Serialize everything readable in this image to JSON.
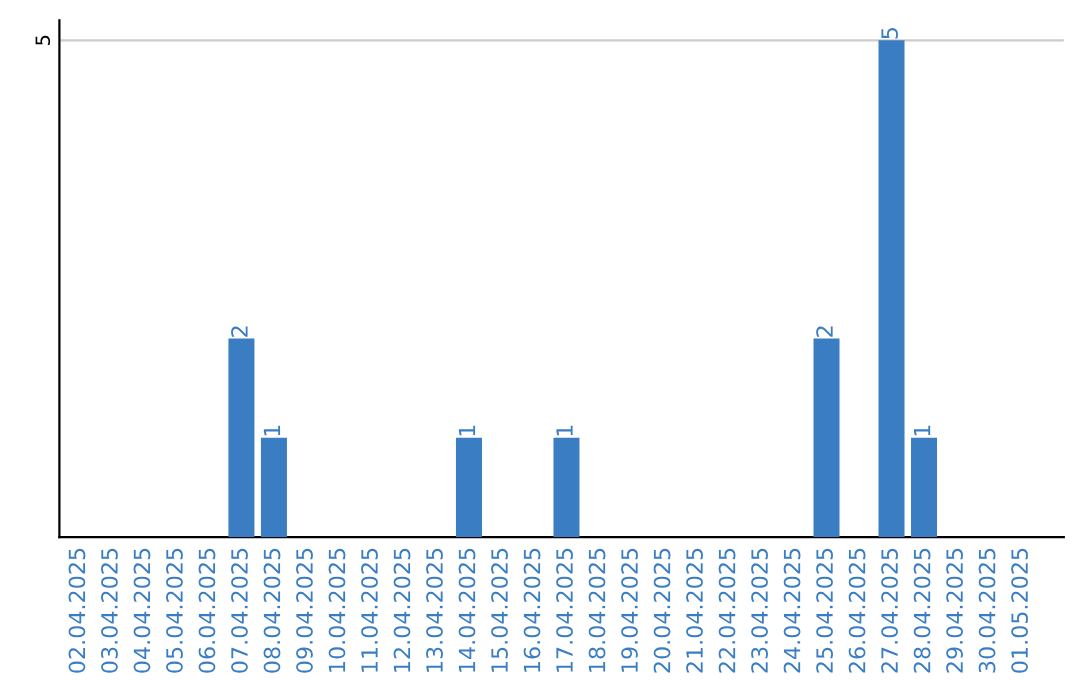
{
  "chart_data": {
    "type": "bar",
    "categories": [
      "02.04.2025",
      "03.04.2025",
      "04.04.2025",
      "05.04.2025",
      "06.04.2025",
      "07.04.2025",
      "08.04.2025",
      "09.04.2025",
      "10.04.2025",
      "11.04.2025",
      "12.04.2025",
      "13.04.2025",
      "14.04.2025",
      "15.04.2025",
      "16.04.2025",
      "17.04.2025",
      "18.04.2025",
      "19.04.2025",
      "20.04.2025",
      "21.04.2025",
      "22.04.2025",
      "23.04.2025",
      "24.04.2025",
      "25.04.2025",
      "26.04.2025",
      "27.04.2025",
      "28.04.2025",
      "29.04.2025",
      "30.04.2025",
      "01.05.2025"
    ],
    "values": [
      0,
      0,
      0,
      0,
      0,
      2,
      1,
      0,
      0,
      0,
      0,
      0,
      1,
      0,
      0,
      1,
      0,
      0,
      0,
      0,
      0,
      0,
      0,
      2,
      0,
      5,
      1,
      0,
      0,
      0
    ],
    "value_labels": [
      null,
      null,
      null,
      null,
      null,
      "2",
      "1",
      null,
      null,
      null,
      null,
      null,
      "1",
      null,
      null,
      "1",
      null,
      null,
      null,
      null,
      null,
      null,
      null,
      "2",
      null,
      "5",
      "1",
      null,
      null,
      null
    ],
    "color": "#3a7dc2",
    "ylim": [
      0,
      5.2
    ],
    "yticks": [
      5
    ],
    "grid": "y"
  }
}
